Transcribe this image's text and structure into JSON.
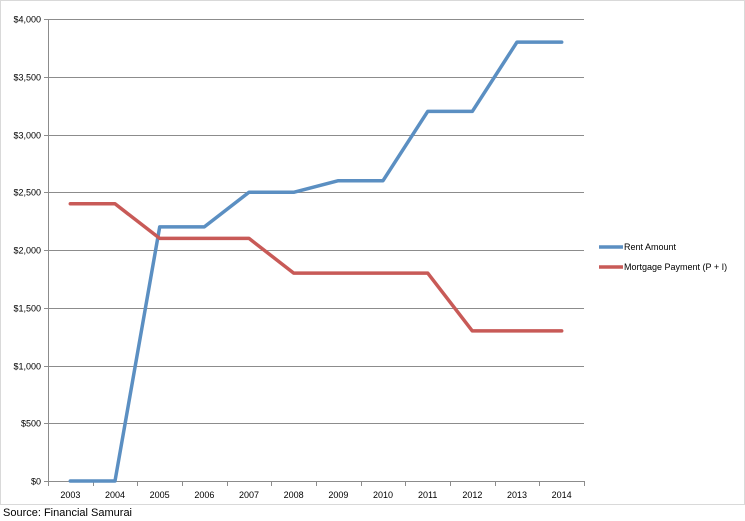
{
  "chart_data": {
    "type": "line",
    "title": "",
    "xlabel": "",
    "ylabel": "",
    "categories": [
      "2003",
      "2004",
      "2005",
      "2006",
      "2007",
      "2008",
      "2009",
      "2010",
      "2011",
      "2012",
      "2013",
      "2014"
    ],
    "ylim": [
      0,
      4000
    ],
    "y_ticks": [
      0,
      500,
      1000,
      1500,
      2000,
      2500,
      3000,
      3500,
      4000
    ],
    "y_tick_labels": [
      "$0",
      "$500",
      "$1,000",
      "$1,500",
      "$2,000",
      "$2,500",
      "$3,000",
      "$3,500",
      "$4,000"
    ],
    "grid": "horizontal",
    "legend_position": "right",
    "series": [
      {
        "name": "Rent Amount",
        "color": "#5b8fc2",
        "values": [
          0,
          0,
          2200,
          2200,
          2500,
          2500,
          2600,
          2600,
          3200,
          3200,
          3800,
          3800
        ]
      },
      {
        "name": "Mortgage Payment (P + I)",
        "color": "#c85a57",
        "values": [
          2400,
          2400,
          2100,
          2100,
          2100,
          1800,
          1800,
          1800,
          1800,
          1300,
          1300,
          1300
        ]
      }
    ]
  },
  "source": "Source: Financial Samurai"
}
